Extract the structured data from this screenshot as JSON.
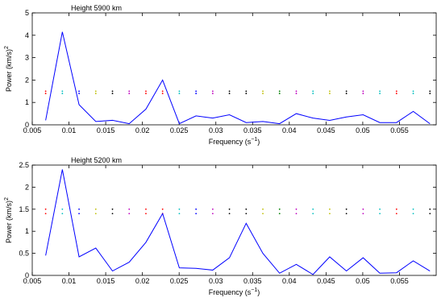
{
  "chart_data": [
    {
      "type": "line",
      "title": "Height 5900 km",
      "xlabel": "Frequency (s",
      "xlabel_sup": "−1",
      "xlabel_end": ")",
      "ylabel": "Power (km/s)",
      "ylabel_sup": "2",
      "x": [
        0.006825,
        0.0091,
        0.011375,
        0.01365,
        0.015925,
        0.0182,
        0.020475,
        0.02275,
        0.025025,
        0.0273,
        0.029575,
        0.03185,
        0.034125,
        0.0364,
        0.038675,
        0.04095,
        0.043225,
        0.0455,
        0.047775,
        0.05005,
        0.052325,
        0.0546,
        0.056875,
        0.05915
      ],
      "series": [
        {
          "color": "#0000ff",
          "values": [
            0.2,
            4.15,
            0.9,
            0.15,
            0.2,
            0.05,
            0.7,
            2.0,
            0.05,
            0.4,
            0.3,
            0.45,
            0.1,
            0.15,
            0.05,
            0.5,
            0.3,
            0.2,
            0.35,
            0.45,
            0.1,
            0.1,
            0.6,
            0.05
          ]
        }
      ],
      "markers": {
        "values": [
          1.4,
          1.5
        ],
        "colors": [
          "#ff0000",
          "#00bfbf",
          "#0000ff",
          "#bfbf00",
          "#000000",
          "#bf00bf",
          "#ff0000",
          "#ff0000",
          "#00bfbf",
          "#0000ff",
          "#bf00bf",
          "#000000",
          "#000000",
          "#bfbf00",
          "#008000",
          "#bf00bf",
          "#00bfbf",
          "#bfbf00",
          "#000000",
          "#bf00bf",
          "#00bfbf",
          "#ff0000",
          "#00bfbf",
          "#000000"
        ]
      },
      "xlim": [
        0.005,
        0.06
      ],
      "xticks": [
        0.005,
        0.01,
        0.015,
        0.02,
        0.025,
        0.03,
        0.035,
        0.04,
        0.045,
        0.05,
        0.055
      ],
      "ylim": [
        0,
        5
      ],
      "yticks": [
        0,
        1,
        2,
        3,
        4,
        5
      ]
    },
    {
      "type": "line",
      "title": "Height 5200 km",
      "xlabel": "Frequency (s",
      "xlabel_sup": "−1",
      "xlabel_end": ")",
      "ylabel": "Power (km/s)",
      "ylabel_sup": "2",
      "x": [
        0.006825,
        0.0091,
        0.011375,
        0.01365,
        0.015925,
        0.0182,
        0.020475,
        0.02275,
        0.025025,
        0.0273,
        0.029575,
        0.03185,
        0.034125,
        0.0364,
        0.038675,
        0.04095,
        0.043225,
        0.0455,
        0.047775,
        0.05005,
        0.052325,
        0.0546,
        0.056875,
        0.05915
      ],
      "series": [
        {
          "color": "#0000ff",
          "values": [
            0.45,
            2.4,
            0.42,
            0.62,
            0.1,
            0.3,
            0.75,
            1.4,
            0.17,
            0.16,
            0.12,
            0.4,
            1.18,
            0.5,
            0.05,
            0.25,
            0.02,
            0.42,
            0.1,
            0.4,
            0.05,
            0.06,
            0.33,
            0.1
          ]
        }
      ],
      "markers": {
        "values": [
          1.4,
          1.5
        ],
        "colors": [
          "#ff0000",
          "#00bfbf",
          "#0000ff",
          "#bfbf00",
          "#000000",
          "#bf00bf",
          "#ff0000",
          "#ff0000",
          "#00bfbf",
          "#0000ff",
          "#bf00bf",
          "#000000",
          "#000000",
          "#bfbf00",
          "#008000",
          "#bf00bf",
          "#00bfbf",
          "#bfbf00",
          "#000000",
          "#bf00bf",
          "#00bfbf",
          "#ff0000",
          "#00bfbf",
          "#000000"
        ]
      },
      "xlim": [
        0.005,
        0.06
      ],
      "xticks": [
        0.005,
        0.01,
        0.015,
        0.02,
        0.025,
        0.03,
        0.035,
        0.04,
        0.045,
        0.05,
        0.055
      ],
      "ylim": [
        0,
        2.5
      ],
      "yticks": [
        0,
        0.5,
        1,
        1.5,
        2,
        2.5
      ]
    }
  ]
}
